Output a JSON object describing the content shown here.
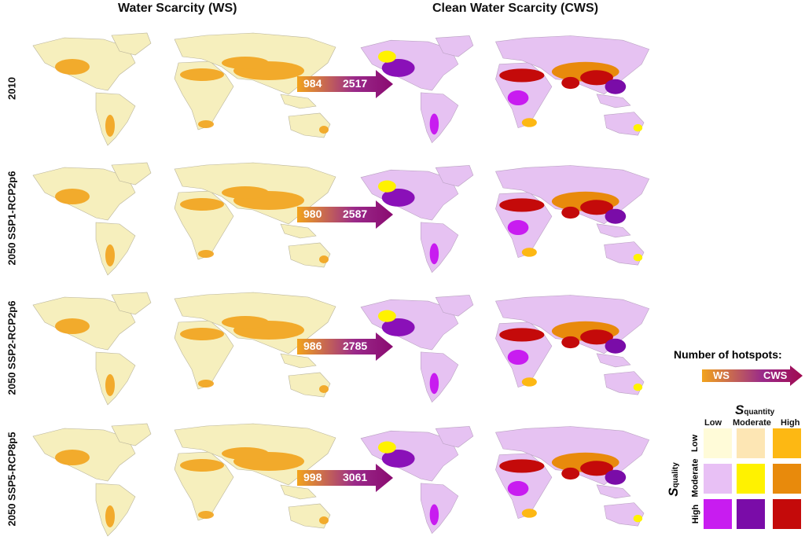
{
  "columns": {
    "ws": "Water Scarcity (WS)",
    "cws": "Clean Water Scarcity (CWS)"
  },
  "rows": [
    {
      "label": "2010",
      "ws_hotspots": "984",
      "cws_hotspots": "2517"
    },
    {
      "label": "2050 SSP1-RCP2p6",
      "ws_hotspots": "980",
      "cws_hotspots": "2587"
    },
    {
      "label": "2050 SSP2-RCP2p6",
      "ws_hotspots": "986",
      "cws_hotspots": "2785"
    },
    {
      "label": "2050 SSP5-RCP8p5",
      "ws_hotspots": "998",
      "cws_hotspots": "3061"
    }
  ],
  "legend": {
    "title": "Number of hotspots:",
    "arrow_from": "WS",
    "arrow_to": "CWS",
    "squantity": "S",
    "squantity_sub": "quantity",
    "squality": "S",
    "squality_sub": "quality",
    "levels": [
      "Low",
      "Moderate",
      "High"
    ],
    "colors": [
      [
        "#fffbd8",
        "#fde6b4",
        "#fdb813"
      ],
      [
        "#e8c0f5",
        "#fff200",
        "#e88a0c"
      ],
      [
        "#c81cf0",
        "#7a0ca8",
        "#c40a0a"
      ]
    ]
  }
}
